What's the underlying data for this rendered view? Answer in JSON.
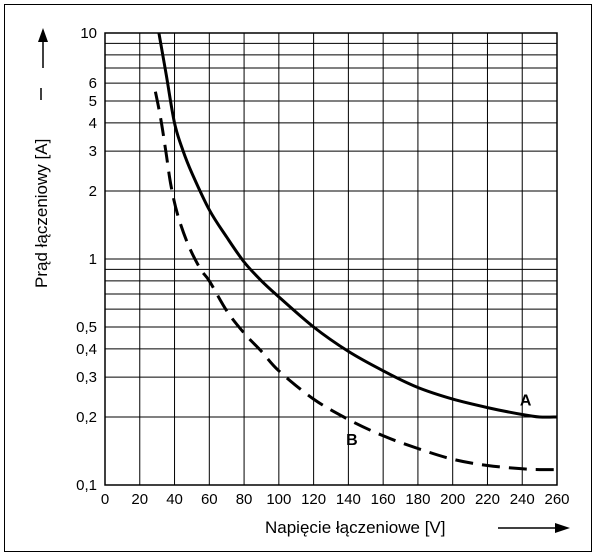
{
  "chart_data": {
    "type": "line",
    "title": "",
    "xlabel": "Napięcie łączeniowe [V]",
    "ylabel": "Prąd łączeniowy [A]",
    "xlim": [
      0,
      260
    ],
    "ylim": [
      0.1,
      10
    ],
    "yscale": "log",
    "grid": true,
    "x_ticks": [
      0,
      20,
      40,
      60,
      80,
      100,
      120,
      140,
      160,
      180,
      200,
      220,
      240,
      260
    ],
    "x_tick_labels": [
      "0",
      "20",
      "40",
      "60",
      "80",
      "100",
      "120",
      "140",
      "160",
      "180",
      "200",
      "220",
      "240",
      "260"
    ],
    "y_grid": [
      0.1,
      0.2,
      0.3,
      0.4,
      0.5,
      0.6,
      0.7,
      0.8,
      0.9,
      1,
      2,
      3,
      4,
      5,
      6,
      7,
      8,
      9,
      10
    ],
    "y_ticks": [
      0.1,
      0.2,
      0.3,
      0.4,
      0.5,
      1,
      2,
      3,
      4,
      5,
      6,
      10
    ],
    "y_tick_labels": [
      "0,1",
      "0,2",
      "0,3",
      "0,4",
      "0,5",
      "1",
      "2",
      "3",
      "4",
      "5",
      "6",
      "10"
    ],
    "series": [
      {
        "name": "A",
        "style": "solid",
        "x": [
          31,
          35,
          40,
          45,
          50,
          60,
          70,
          80,
          90,
          100,
          120,
          140,
          160,
          180,
          200,
          220,
          240,
          250,
          260
        ],
        "y": [
          10,
          6.7,
          4.0,
          3.0,
          2.4,
          1.65,
          1.25,
          0.97,
          0.8,
          0.68,
          0.5,
          0.39,
          0.32,
          0.27,
          0.24,
          0.22,
          0.205,
          0.2,
          0.2
        ]
      },
      {
        "name": "B",
        "style": "dashed",
        "x": [
          29,
          32,
          35,
          38,
          42,
          48,
          55,
          60,
          70,
          80,
          90,
          100,
          120,
          140,
          160,
          180,
          200,
          220,
          240,
          250,
          260
        ],
        "y": [
          5.5,
          4.2,
          3.0,
          2.1,
          1.55,
          1.15,
          0.9,
          0.8,
          0.59,
          0.47,
          0.39,
          0.32,
          0.24,
          0.195,
          0.165,
          0.145,
          0.13,
          0.122,
          0.118,
          0.117,
          0.117
        ]
      }
    ],
    "series_labels": [
      {
        "name": "A",
        "x": 242,
        "y": 0.225
      },
      {
        "name": "B",
        "x": 142,
        "y": 0.15
      }
    ]
  }
}
